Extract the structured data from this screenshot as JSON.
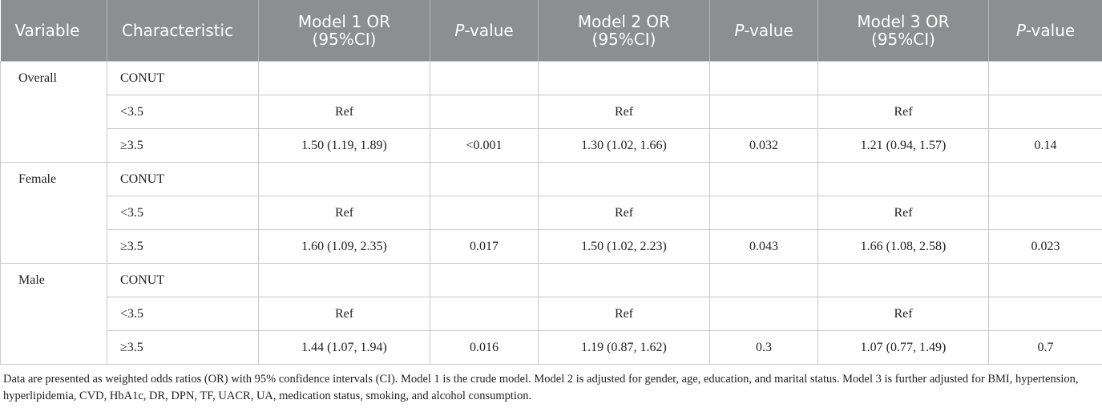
{
  "table": {
    "header": [
      "Variable",
      "Characteristic",
      "Model 1 OR (95%CI)",
      [
        "P",
        "-value"
      ],
      "Model 2 OR (95%CI)",
      [
        "P",
        "-value"
      ],
      "Model 3 OR (95%CI)",
      [
        "P",
        "-value"
      ]
    ],
    "groups": [
      {
        "variable": "Overall",
        "rows": [
          [
            "CONUT"
          ],
          [
            "<3.5",
            "Ref",
            null,
            "Ref",
            null,
            "Ref",
            null
          ],
          [
            "≥3.5",
            "1.50 (1.19, 1.89)",
            "<0.001",
            "1.30 (1.02, 1.66)",
            "0.032",
            "1.21 (0.94, 1.57)",
            "0.14"
          ]
        ]
      },
      {
        "variable": "Female",
        "rows": [
          [
            "CONUT"
          ],
          [
            "<3.5",
            "Ref",
            null,
            "Ref",
            null,
            "Ref",
            null
          ],
          [
            "≥3.5",
            "1.60 (1.09, 2.35)",
            "0.017",
            "1.50 (1.02, 2.23)",
            "0.043",
            "1.66 (1.08, 2.58)",
            "0.023"
          ]
        ]
      },
      {
        "variable": "Male",
        "rows": [
          [
            "CONUT"
          ],
          [
            "<3.5",
            "Ref",
            null,
            "Ref",
            null,
            "Ref",
            null
          ],
          [
            "≥3.5",
            "1.44 (1.07, 1.94)",
            "0.016",
            "1.19 (0.87, 1.62)",
            "0.3",
            "1.07 (0.77, 1.49)",
            "0.7"
          ]
        ]
      }
    ],
    "footnote": "Data are presented as weighted odds ratios (OR) with 95% confidence intervals (CI). Model 1 is the crude model. Model 2 is adjusted for gender, age, education, and marital status. Model 3 is further adjusted for BMI, hypertension, hyperlipidemia, CVD, HbA1c, DR, DPN, TF, UACR, UA, medication status, smoking, and alcohol consumption."
  }
}
